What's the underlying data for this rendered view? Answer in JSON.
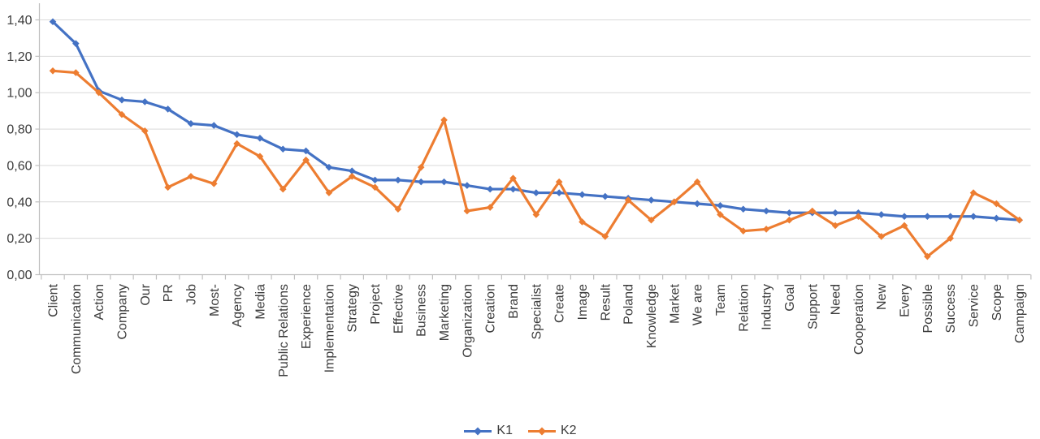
{
  "chart_data": {
    "type": "line",
    "title": "",
    "xlabel": "",
    "ylabel": "",
    "categories": [
      "Client",
      "Communication",
      "Action",
      "Company",
      "Our",
      "PR",
      "Job",
      "Most-",
      "Agency",
      "Media",
      "Public Relations",
      "Experience",
      "Implementation",
      "Strategy",
      "Project",
      "Effective",
      "Business",
      "Marketing",
      "Organization",
      "Creation",
      "Brand",
      "Specialist",
      "Create",
      "Image",
      "Result",
      "Poland",
      "Knowledge",
      "Market",
      "We are",
      "Team",
      "Relation",
      "Industry",
      "Goal",
      "Support",
      "Need",
      "Cooperation",
      "New",
      "Every",
      "Possible",
      "Success",
      "Service",
      "Scope",
      "Campaign"
    ],
    "series": [
      {
        "name": "K1",
        "color": "#4472C4",
        "marker": "diamond",
        "values": [
          1.39,
          1.27,
          1.01,
          0.96,
          0.95,
          0.91,
          0.83,
          0.82,
          0.77,
          0.75,
          0.69,
          0.68,
          0.59,
          0.57,
          0.52,
          0.52,
          0.51,
          0.51,
          0.49,
          0.47,
          0.47,
          0.45,
          0.45,
          0.44,
          0.43,
          0.42,
          0.41,
          0.4,
          0.39,
          0.38,
          0.36,
          0.35,
          0.34,
          0.34,
          0.34,
          0.34,
          0.33,
          0.32,
          0.32,
          0.32,
          0.32,
          0.31,
          0.3
        ]
      },
      {
        "name": "K2",
        "color": "#ED7D31",
        "marker": "diamond",
        "values": [
          1.12,
          1.11,
          1.0,
          0.88,
          0.79,
          0.48,
          0.54,
          0.5,
          0.72,
          0.65,
          0.47,
          0.63,
          0.45,
          0.54,
          0.48,
          0.36,
          0.59,
          0.85,
          0.35,
          0.37,
          0.53,
          0.33,
          0.51,
          0.29,
          0.21,
          0.41,
          0.3,
          0.4,
          0.51,
          0.33,
          0.24,
          0.25,
          0.3,
          0.35,
          0.27,
          0.32,
          0.21,
          0.27,
          0.1,
          0.2,
          0.45,
          0.39,
          0.3
        ]
      }
    ],
    "ylim": [
      0.0,
      1.4
    ],
    "ytick_step": 0.2,
    "ytick_labels": [
      "0,00",
      "0,20",
      "0,40",
      "0,60",
      "0,80",
      "1,00",
      "1,20",
      "1,40"
    ],
    "decimal_separator": ",",
    "grid": true,
    "legend_position": "bottom",
    "x_labels_rotation_deg": -90
  },
  "legend": {
    "items": [
      {
        "label": "K1",
        "color": "#4472C4"
      },
      {
        "label": "K2",
        "color": "#ED7D31"
      }
    ]
  },
  "axes": {
    "grid_color": "#D9D9D9",
    "axis_color": "#BFBFBF",
    "tick_color": "#BFBFBF",
    "label_color": "#3b3b3b"
  },
  "background": "#FFFFFF"
}
